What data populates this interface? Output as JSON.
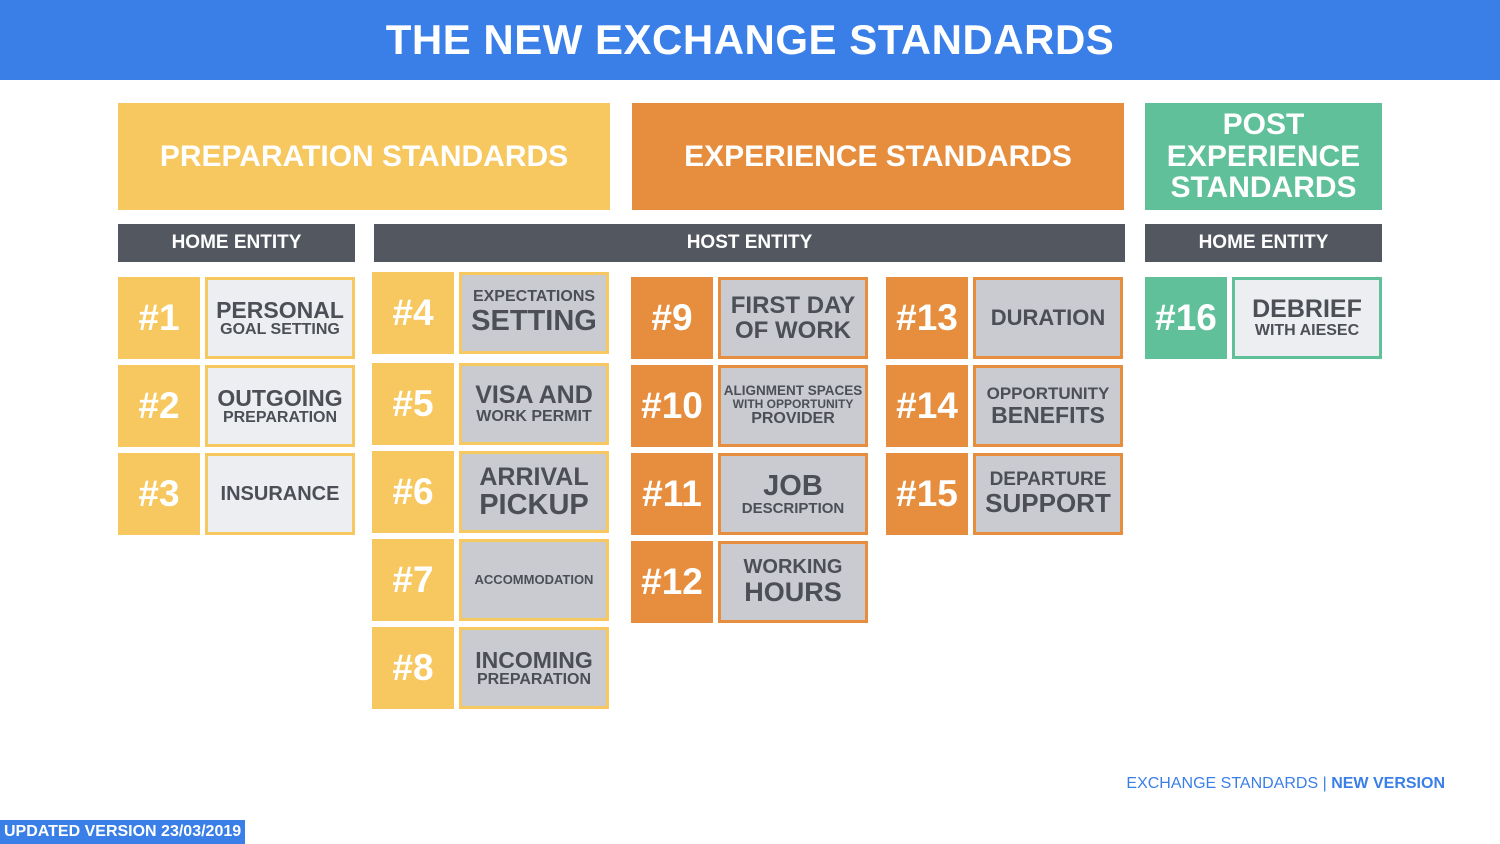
{
  "title": "THE NEW EXCHANGE STANDARDS",
  "sections": {
    "preparation": "PREPARATION STANDARDS",
    "experience": "EXPERIENCE STANDARDS",
    "post_experience": "POST\nEXPERIENCE\nSTANDARDS"
  },
  "entities": {
    "home_left": "HOME ENTITY",
    "host": "HOST ENTITY",
    "home_right": "HOME ENTITY"
  },
  "standards": [
    {
      "number": "#1",
      "line1": "PERSONAL",
      "line2": "GOAL SETTING"
    },
    {
      "number": "#2",
      "line1": "OUTGOING",
      "line2": "PREPARATION"
    },
    {
      "number": "#3",
      "line1": "INSURANCE"
    },
    {
      "number": "#4",
      "line1": "EXPECTATIONS",
      "line2": "SETTING"
    },
    {
      "number": "#5",
      "line1": "VISA AND",
      "line2": "WORK PERMIT"
    },
    {
      "number": "#6",
      "line1": "ARRIVAL",
      "line2": "PICKUP"
    },
    {
      "number": "#7",
      "line1": "ACCOMMODATION"
    },
    {
      "number": "#8",
      "line1": "INCOMING",
      "line2": "PREPARATION"
    },
    {
      "number": "#9",
      "line1": "FIRST DAY",
      "line2": "OF WORK"
    },
    {
      "number": "#10",
      "line1": "ALIGNMENT SPACES",
      "line2": "WITH OPPORTUNITY",
      "line3": "PROVIDER"
    },
    {
      "number": "#11",
      "line1": "JOB",
      "line2": "DESCRIPTION"
    },
    {
      "number": "#12",
      "line1": "WORKING",
      "line2": "HOURS"
    },
    {
      "number": "#13",
      "line1": "DURATION"
    },
    {
      "number": "#14",
      "line1": "OPPORTUNITY",
      "line2": "BENEFITS"
    },
    {
      "number": "#15",
      "line1": "DEPARTURE",
      "line2": "SUPPORT"
    },
    {
      "number": "#16",
      "line1": "DEBRIEF",
      "line2": "WITH AIESEC"
    }
  ],
  "footer": {
    "brand": "EXCHANGE STANDARDS",
    "separator": "|",
    "version": "NEW VERSION",
    "updated": "UPDATED VERSION 23/03/2019"
  },
  "colors": {
    "title_bar": "#3a7fe8",
    "preparation": "#f6c85f",
    "experience": "#e68e3e",
    "post_experience": "#5fc09a",
    "entity_bar": "#535760"
  }
}
